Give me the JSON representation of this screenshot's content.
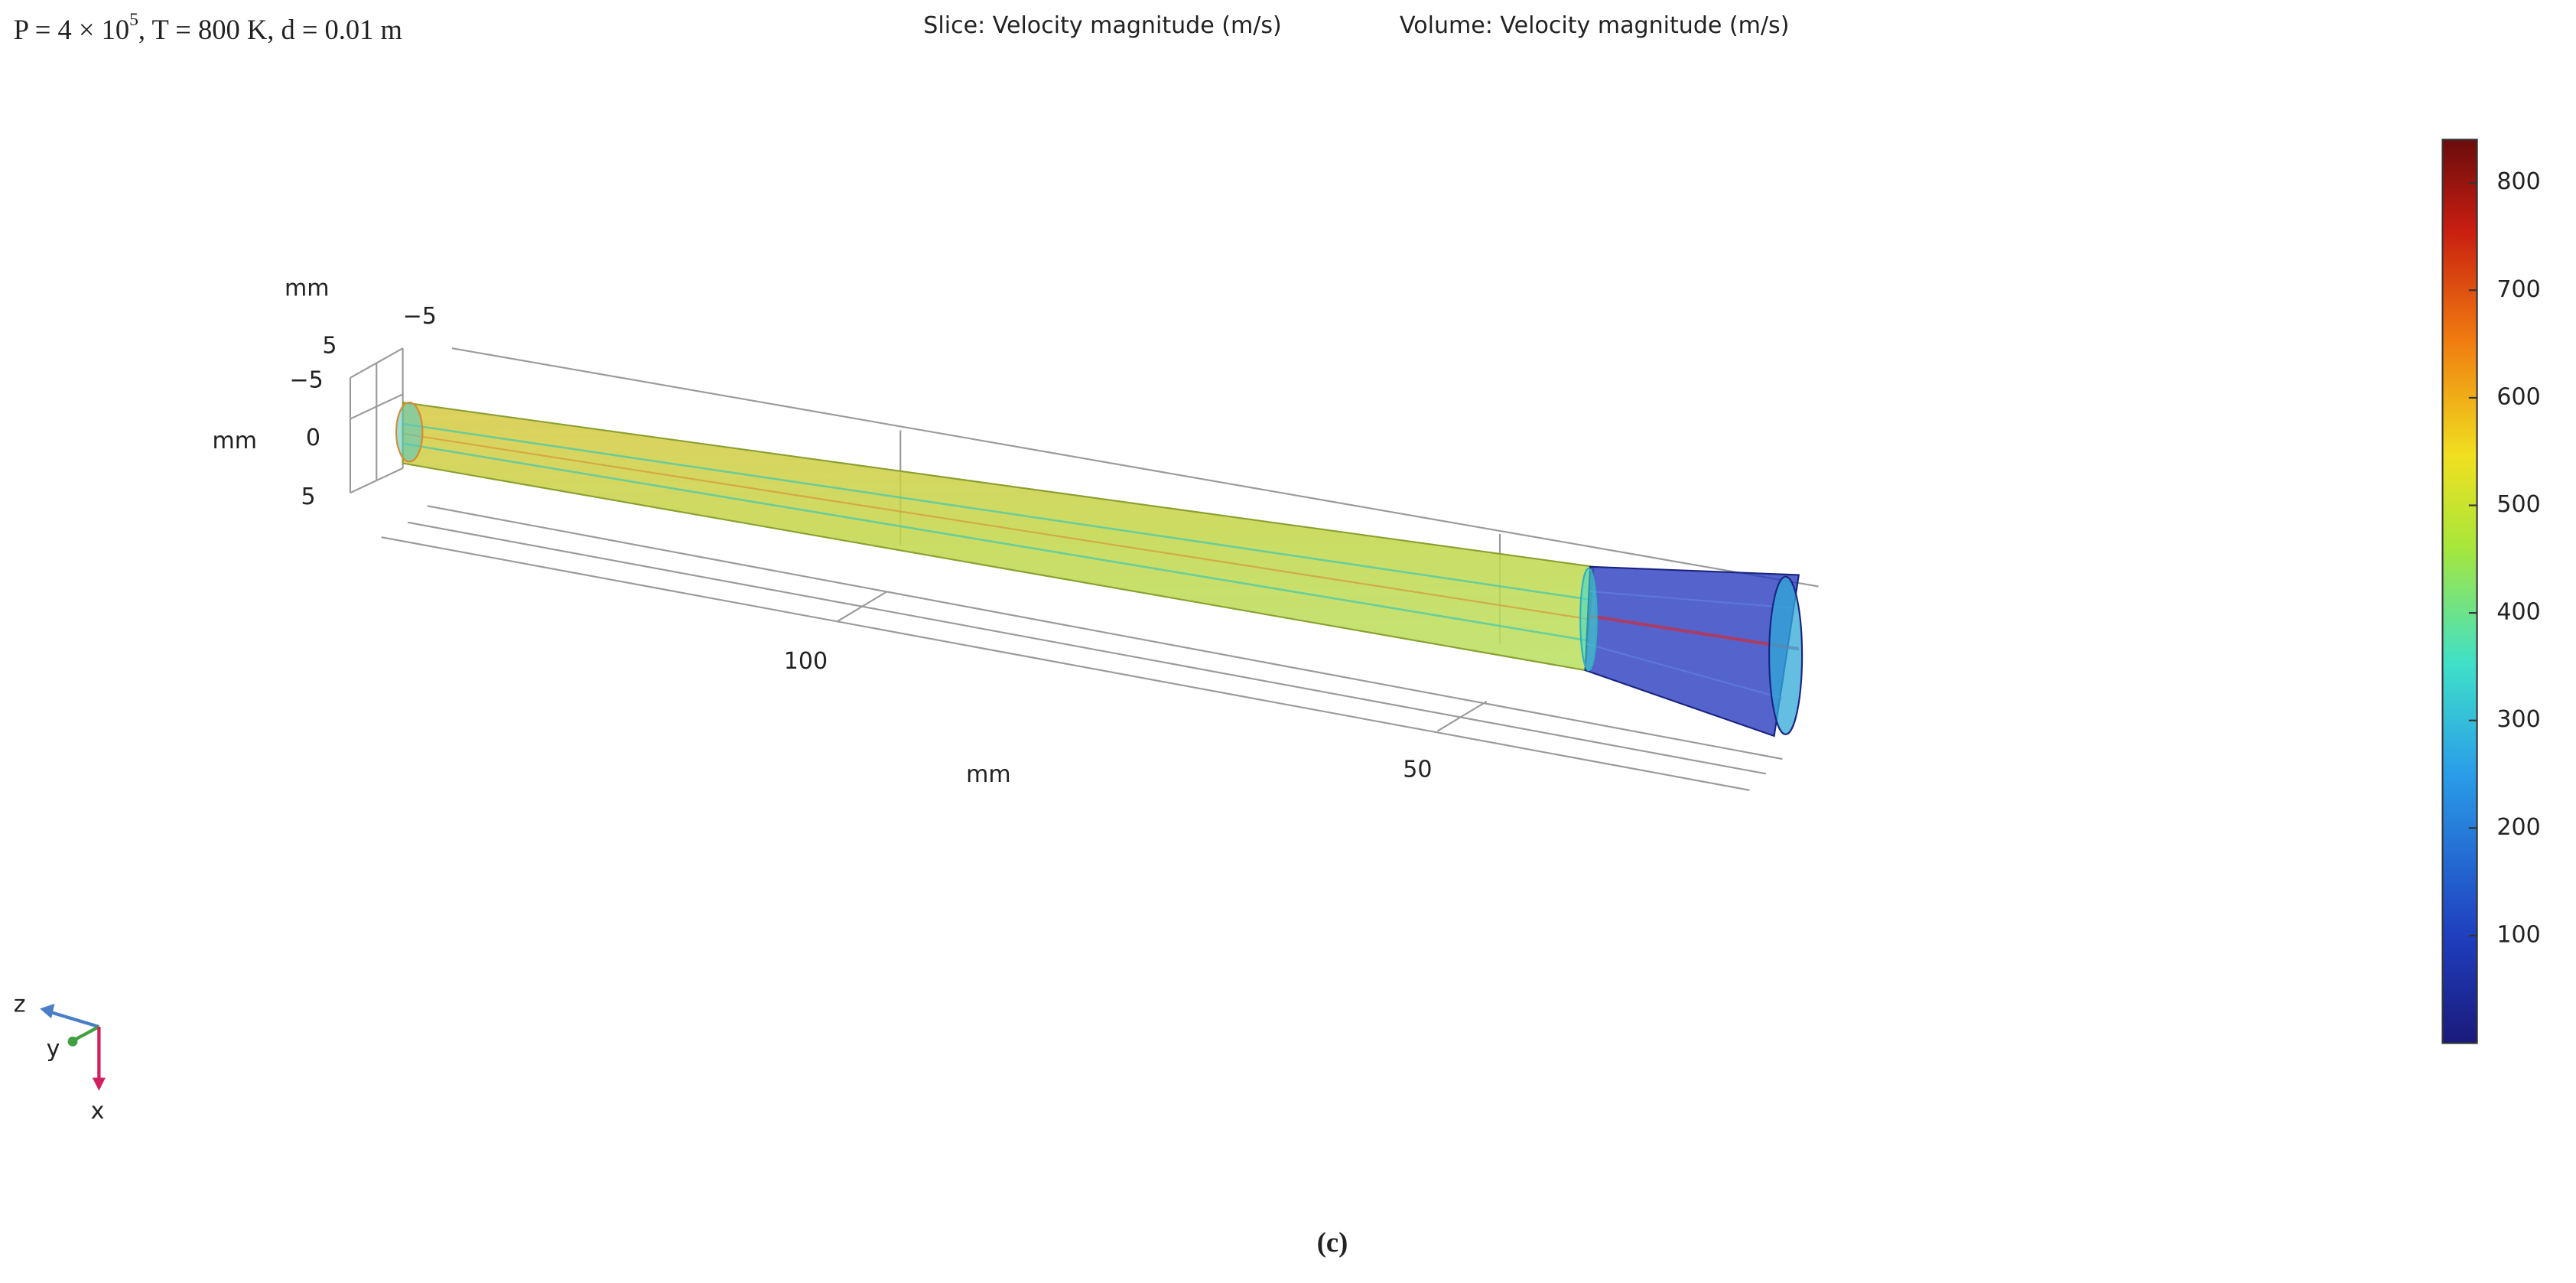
{
  "header": {
    "parameters": {
      "base": "P = 4 × 10",
      "exponent": "5",
      "rest": ", T = 800 K, d = 0.01 m"
    },
    "plot_title": {
      "slice": "Slice: Velocity magnitude (m/s)",
      "volume": "Volume: Velocity magnitude (m/s)"
    }
  },
  "axes": {
    "vertical_unit": "mm",
    "vertical_ticks_top": [
      "−5",
      "5"
    ],
    "side_unit": "mm",
    "side_ticks": [
      "−5",
      "0",
      "5"
    ],
    "length_ticks": [
      "100",
      "50"
    ],
    "length_unit": "mm"
  },
  "colorbar": {
    "range": [
      0,
      840
    ],
    "ticks": [
      100,
      200,
      300,
      400,
      500,
      600,
      700,
      800
    ]
  },
  "triad": {
    "z": "z",
    "y": "y",
    "x": "x"
  },
  "caption": "(c)"
}
